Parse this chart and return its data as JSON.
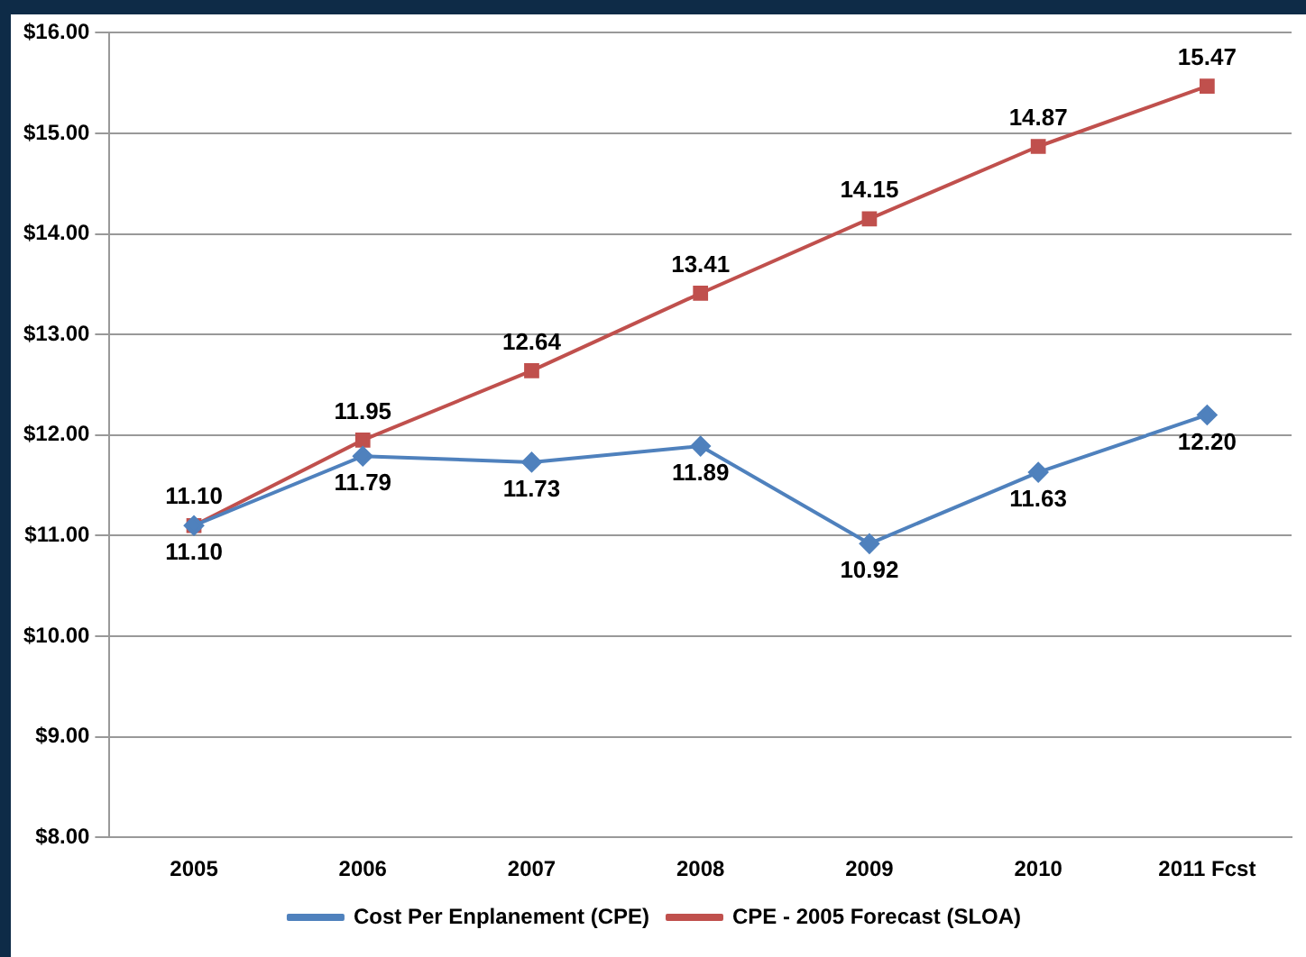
{
  "chart_data": {
    "type": "line",
    "categories": [
      "2005",
      "2006",
      "2007",
      "2008",
      "2009",
      "2010",
      "2011 Fcst"
    ],
    "series": [
      {
        "name": "Cost Per Enplanement (CPE)",
        "color": "#4f81bd",
        "marker": "diamond",
        "values": [
          11.1,
          11.79,
          11.73,
          11.89,
          10.92,
          11.63,
          12.2
        ],
        "value_labels": [
          "11.10",
          "11.79",
          "11.73",
          "11.89",
          "10.92",
          "11.63",
          "12.20"
        ]
      },
      {
        "name": "CPE - 2005 Forecast (SLOA)",
        "color": "#c0504d",
        "marker": "square",
        "values": [
          11.1,
          11.95,
          12.64,
          13.41,
          14.15,
          14.87,
          15.47
        ],
        "value_labels": [
          "11.10",
          "11.95",
          "12.64",
          "13.41",
          "14.15",
          "14.87",
          "15.47"
        ]
      }
    ],
    "ylim": [
      8,
      16
    ],
    "yticks": [
      {
        "value": 8,
        "label": "$8.00"
      },
      {
        "value": 9,
        "label": "$9.00"
      },
      {
        "value": 10,
        "label": "$10.00"
      },
      {
        "value": 11,
        "label": "$11.00"
      },
      {
        "value": 12,
        "label": "$12.00"
      },
      {
        "value": 13,
        "label": "$13.00"
      },
      {
        "value": 14,
        "label": "$14.00"
      },
      {
        "value": 15,
        "label": "$15.00"
      },
      {
        "value": 16,
        "label": "$16.00"
      }
    ],
    "grid": "y",
    "legend": "bottom",
    "line_style": "solid"
  }
}
